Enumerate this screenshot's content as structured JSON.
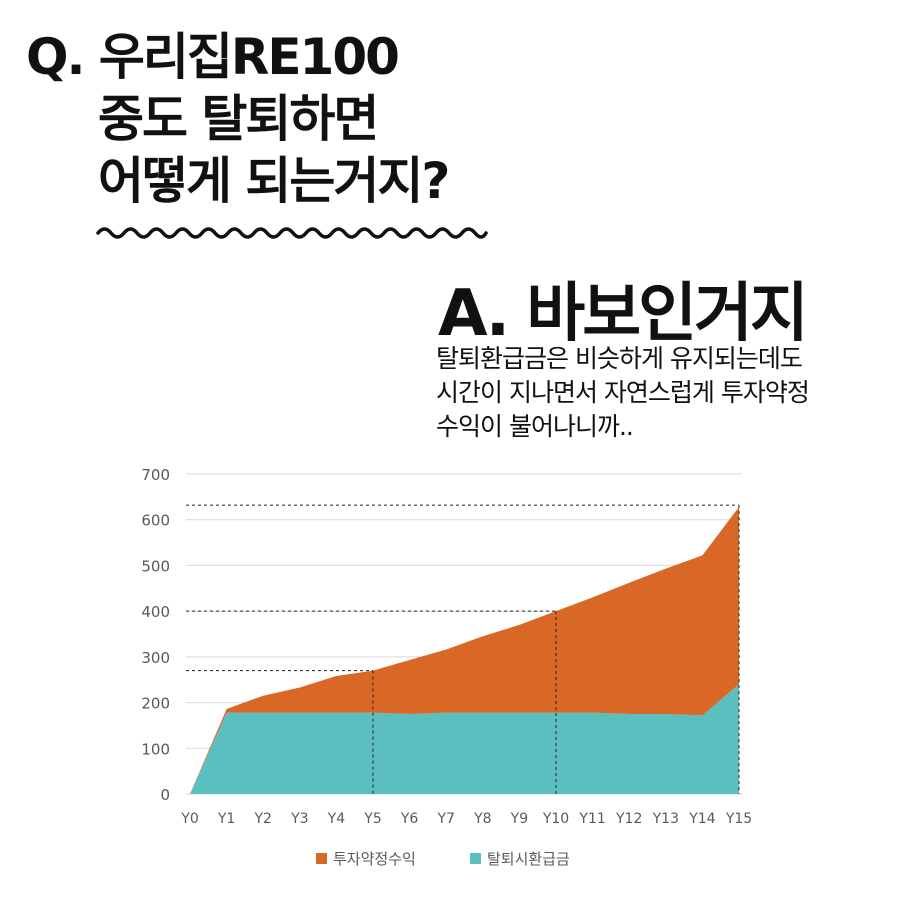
{
  "question": {
    "lines": [
      "Q. 우리집RE100",
      "중도 탈퇴하면",
      "어떻게 되는거지?"
    ]
  },
  "answer": {
    "title": "A. 바보인거지",
    "description": [
      "탈퇴환급금은 비슷하게 유지되는데도",
      "시간이 지나면서 자연스럽게 투자약정",
      "수익이 불어나니까.."
    ]
  },
  "colors": {
    "investment": "#d96726",
    "refund": "#5bbfbf",
    "grid": "#d9d9d9",
    "axis_text": "#595959"
  },
  "chart_data": {
    "type": "area",
    "stacked": true,
    "categories": [
      "Y0",
      "Y1",
      "Y2",
      "Y3",
      "Y4",
      "Y5",
      "Y6",
      "Y7",
      "Y8",
      "Y9",
      "Y10",
      "Y11",
      "Y12",
      "Y13",
      "Y14",
      "Y15"
    ],
    "series": [
      {
        "name": "탈퇴시환급금",
        "color": "#5bbfbf",
        "values": [
          0,
          178,
          178,
          178,
          178,
          178,
          175,
          178,
          178,
          178,
          178,
          178,
          175,
          175,
          172,
          240
        ]
      },
      {
        "name": "투자약정수익",
        "color": "#d96726",
        "values": [
          0,
          8,
          37,
          55,
          80,
          92,
          118,
          138,
          167,
          192,
          222,
          252,
          287,
          318,
          350,
          388
        ]
      }
    ],
    "ylim": [
      0,
      700
    ],
    "yticks": [
      0,
      100,
      200,
      300,
      400,
      500,
      600,
      700
    ],
    "grid": true,
    "legend": "bottom",
    "reference_points": [
      {
        "x": "Y5",
        "y": 270
      },
      {
        "x": "Y10",
        "y": 400
      },
      {
        "x": "Y15",
        "y": 632
      }
    ]
  }
}
